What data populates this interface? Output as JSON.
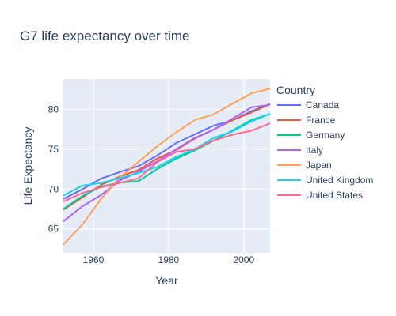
{
  "chart_data": {
    "type": "line",
    "title": "G7 life expectancy over time",
    "xlabel": "Year",
    "ylabel": "Life Expectancy",
    "xlim": [
      1952,
      2007
    ],
    "ylim": [
      62,
      83.8
    ],
    "xticks": [
      1960,
      1980,
      2000
    ],
    "yticks": [
      65,
      70,
      75,
      80
    ],
    "grid": true,
    "legend_title": "Country",
    "legend_position": "right",
    "x": [
      1952,
      1957,
      1962,
      1967,
      1972,
      1977,
      1982,
      1987,
      1992,
      1997,
      2002,
      2007
    ],
    "series": [
      {
        "name": "Canada",
        "color": "#636efa",
        "values": [
          68.75,
          69.96,
          71.3,
          72.13,
          72.88,
          74.21,
          75.76,
          76.86,
          77.95,
          78.61,
          79.77,
          80.65
        ]
      },
      {
        "name": "France",
        "color": "#ef553b",
        "values": [
          67.41,
          68.93,
          70.51,
          71.55,
          72.38,
          73.83,
          74.89,
          76.34,
          77.46,
          78.64,
          79.59,
          80.66
        ]
      },
      {
        "name": "Germany",
        "color": "#00cc96",
        "values": [
          67.5,
          69.1,
          70.3,
          70.8,
          71.0,
          72.5,
          73.8,
          74.85,
          76.07,
          77.34,
          78.67,
          79.41
        ]
      },
      {
        "name": "Italy",
        "color": "#ab63fa",
        "values": [
          65.94,
          67.81,
          69.24,
          71.06,
          72.19,
          73.48,
          74.98,
          76.42,
          77.44,
          78.82,
          80.24,
          80.55
        ]
      },
      {
        "name": "Japan",
        "color": "#ffa15a",
        "values": [
          63.03,
          65.5,
          68.73,
          71.43,
          73.42,
          75.38,
          77.11,
          78.67,
          79.36,
          80.69,
          82.0,
          82.6
        ]
      },
      {
        "name": "United Kingdom",
        "color": "#19d3f3",
        "values": [
          69.18,
          70.42,
          70.76,
          71.36,
          72.01,
          72.76,
          74.04,
          75.01,
          76.42,
          77.22,
          78.47,
          79.43
        ]
      },
      {
        "name": "United States",
        "color": "#ff6692",
        "values": [
          68.44,
          69.49,
          70.21,
          70.76,
          71.34,
          73.38,
          74.65,
          75.02,
          76.09,
          76.81,
          77.31,
          78.24
        ]
      }
    ]
  }
}
